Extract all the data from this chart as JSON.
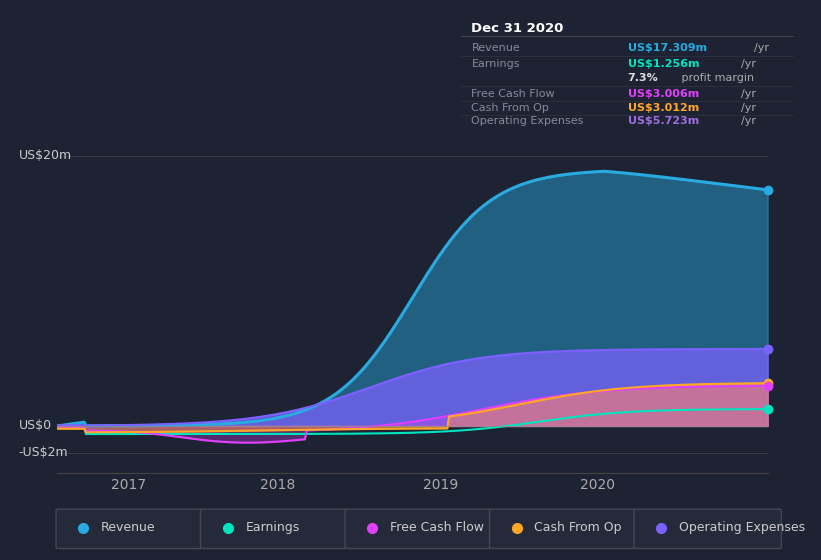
{
  "background_color": "#1e2333",
  "plot_bg_color": "#1e2333",
  "title": "Dec 31 2020",
  "ylabel_20m": "US$20m",
  "ylabel_0": "US$0",
  "ylabel_neg2m": "-US$2m",
  "xticks": [
    "2017",
    "2018",
    "2019",
    "2020"
  ],
  "series_colors": {
    "revenue": "#29abe2",
    "earnings": "#00e5c0",
    "free_cash_flow": "#e040fb",
    "cash_from_op": "#ffa726",
    "operating_expenses": "#7b61ff"
  },
  "legend_items": [
    {
      "label": "Revenue",
      "color": "#29abe2"
    },
    {
      "label": "Earnings",
      "color": "#00e5c0"
    },
    {
      "label": "Free Cash Flow",
      "color": "#e040fb"
    },
    {
      "label": "Cash From Op",
      "color": "#ffa726"
    },
    {
      "label": "Operating Expenses",
      "color": "#7b61ff"
    }
  ],
  "info_box": {
    "title": "Dec 31 2020",
    "rows": [
      {
        "label": "Revenue",
        "value": "US$17.309m",
        "unit": "/yr",
        "color": "#29abe2"
      },
      {
        "label": "Earnings",
        "value": "US$1.256m",
        "unit": "/yr",
        "color": "#00e5c0"
      },
      {
        "label": "",
        "value": "7.3%",
        "unit": " profit margin",
        "color": "#ffffff"
      },
      {
        "label": "Free Cash Flow",
        "value": "US$3.006m",
        "unit": "/yr",
        "color": "#e040fb"
      },
      {
        "label": "Cash From Op",
        "value": "US$3.012m",
        "unit": "/yr",
        "color": "#ffa726"
      },
      {
        "label": "Operating Expenses",
        "value": "US$5.723m",
        "unit": "/yr",
        "color": "#9c6fde"
      }
    ]
  }
}
